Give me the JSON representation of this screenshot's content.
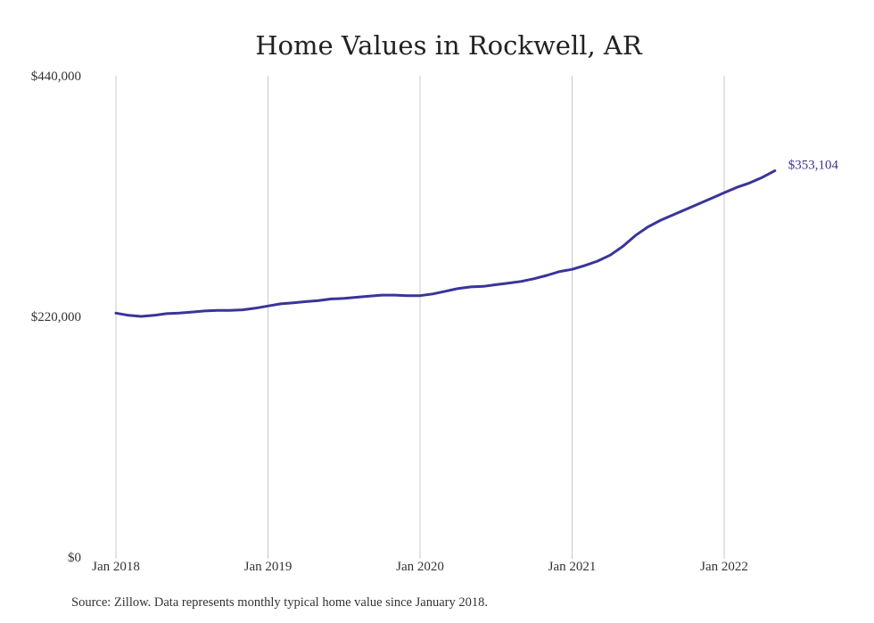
{
  "chart_data": {
    "type": "line",
    "title": "Home Values in Rockwell, AR",
    "xlabel": "",
    "ylabel": "",
    "ylim": [
      0,
      440000
    ],
    "y_ticks": [
      {
        "value": 0,
        "label": "$0"
      },
      {
        "value": 220000,
        "label": "$220,000"
      },
      {
        "value": 440000,
        "label": "$440,000"
      }
    ],
    "x_ticks": [
      "Jan 2018",
      "Jan 2019",
      "Jan 2020",
      "Jan 2021",
      "Jan 2022"
    ],
    "grid": "vertical",
    "series": [
      {
        "color": "#3a3499",
        "x": [
          "2018-01",
          "2018-02",
          "2018-03",
          "2018-04",
          "2018-05",
          "2018-06",
          "2018-07",
          "2018-08",
          "2018-09",
          "2018-10",
          "2018-11",
          "2018-12",
          "2019-01",
          "2019-02",
          "2019-03",
          "2019-04",
          "2019-05",
          "2019-06",
          "2019-07",
          "2019-08",
          "2019-09",
          "2019-10",
          "2019-11",
          "2019-12",
          "2020-01",
          "2020-02",
          "2020-03",
          "2020-04",
          "2020-05",
          "2020-06",
          "2020-07",
          "2020-08",
          "2020-09",
          "2020-10",
          "2020-11",
          "2020-12",
          "2021-01",
          "2021-02",
          "2021-03",
          "2021-04",
          "2021-05",
          "2021-06",
          "2021-07",
          "2021-08",
          "2021-09",
          "2021-10",
          "2021-11",
          "2021-12",
          "2022-01",
          "2022-02",
          "2022-03",
          "2022-04",
          "2022-05"
        ],
        "values": [
          223000,
          221000,
          220000,
          221000,
          222500,
          223000,
          224000,
          225000,
          225500,
          225500,
          226000,
          227500,
          229500,
          231500,
          232500,
          233500,
          234500,
          236000,
          236500,
          237500,
          238500,
          239500,
          239500,
          239000,
          239000,
          240500,
          243000,
          245500,
          247000,
          247500,
          249000,
          250500,
          252000,
          254500,
          257500,
          261000,
          263000,
          266500,
          270500,
          276000,
          284000,
          294000,
          302000,
          308000,
          313000,
          318000,
          323000,
          328000,
          333000,
          338000,
          342000,
          347000,
          353104
        ]
      }
    ],
    "end_label": "$353,104"
  },
  "footer": {
    "source": "Source: Zillow. Data represents monthly typical home value since January 2018."
  }
}
